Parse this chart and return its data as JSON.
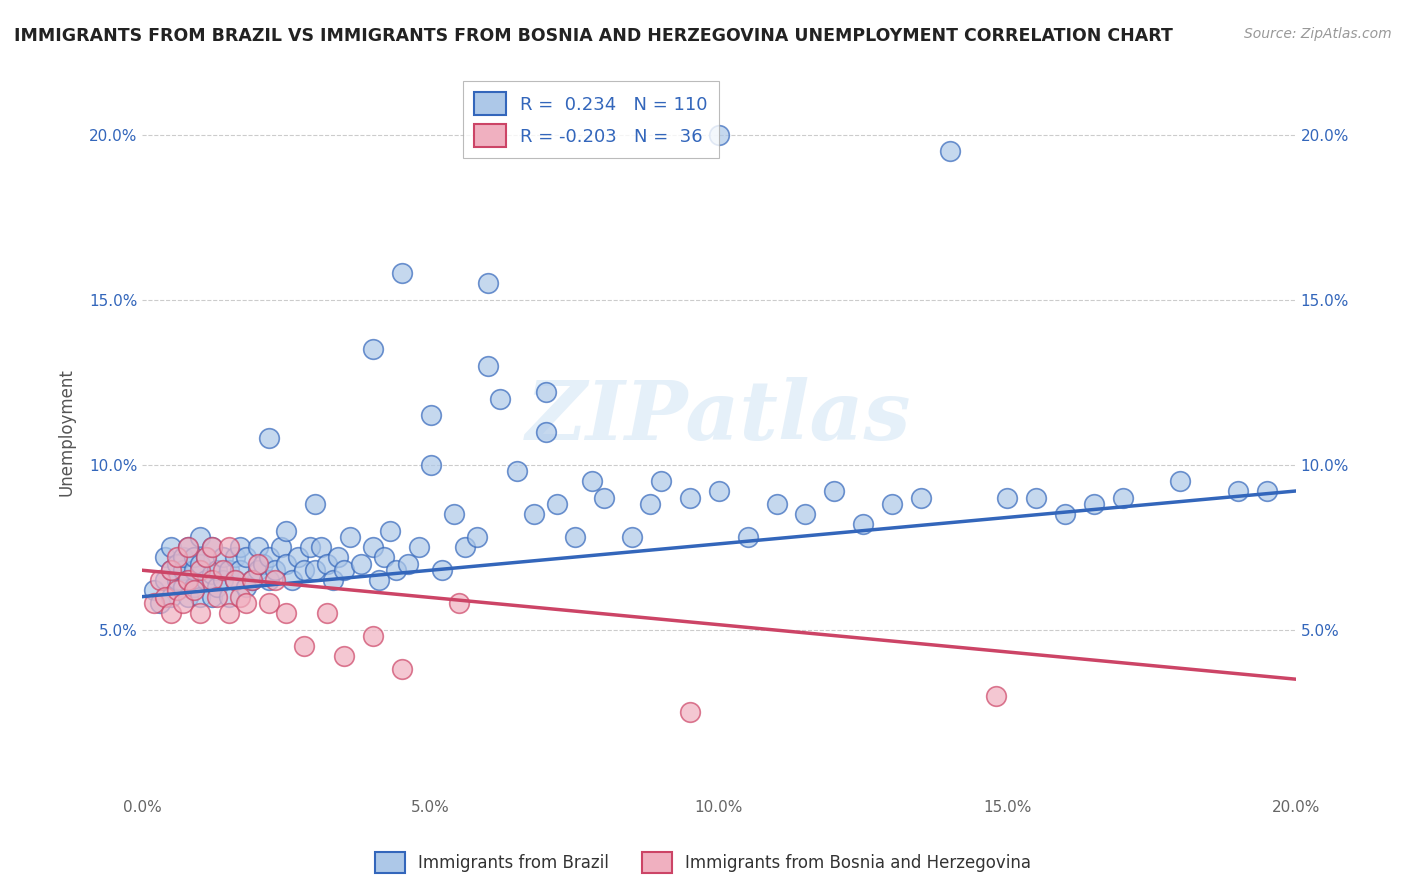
{
  "title": "IMMIGRANTS FROM BRAZIL VS IMMIGRANTS FROM BOSNIA AND HERZEGOVINA UNEMPLOYMENT CORRELATION CHART",
  "source": "Source: ZipAtlas.com",
  "ylabel": "Unemployment",
  "xlim": [
    0.0,
    0.2
  ],
  "ylim": [
    0.0,
    0.22
  ],
  "x_ticks": [
    0.0,
    0.05,
    0.1,
    0.15,
    0.2
  ],
  "x_tick_labels": [
    "0.0%",
    "5.0%",
    "10.0%",
    "15.0%",
    "20.0%"
  ],
  "y_ticks": [
    0.05,
    0.1,
    0.15,
    0.2
  ],
  "y_tick_labels": [
    "5.0%",
    "10.0%",
    "15.0%",
    "20.0%"
  ],
  "brazil_color": "#adc8e8",
  "brazil_edge_color": "#3366bb",
  "bosnia_color": "#f0b0c0",
  "bosnia_edge_color": "#cc4466",
  "brazil_R": 0.234,
  "brazil_N": 110,
  "bosnia_R": -0.203,
  "bosnia_N": 36,
  "watermark": "ZIPatlas",
  "legend_brazil": "Immigrants from Brazil",
  "legend_bosnia": "Immigrants from Bosnia and Herzegovina",
  "brazil_scatter_x": [
    0.002,
    0.003,
    0.004,
    0.004,
    0.005,
    0.005,
    0.005,
    0.006,
    0.006,
    0.007,
    0.007,
    0.007,
    0.008,
    0.008,
    0.008,
    0.009,
    0.009,
    0.009,
    0.01,
    0.01,
    0.01,
    0.011,
    0.011,
    0.012,
    0.012,
    0.012,
    0.013,
    0.013,
    0.014,
    0.014,
    0.015,
    0.015,
    0.016,
    0.016,
    0.017,
    0.017,
    0.018,
    0.018,
    0.019,
    0.02,
    0.02,
    0.021,
    0.022,
    0.022,
    0.023,
    0.024,
    0.025,
    0.026,
    0.027,
    0.028,
    0.029,
    0.03,
    0.031,
    0.032,
    0.033,
    0.034,
    0.035,
    0.036,
    0.038,
    0.04,
    0.041,
    0.042,
    0.043,
    0.044,
    0.045,
    0.046,
    0.048,
    0.05,
    0.052,
    0.054,
    0.056,
    0.058,
    0.06,
    0.062,
    0.065,
    0.068,
    0.07,
    0.072,
    0.075,
    0.078,
    0.08,
    0.085,
    0.088,
    0.09,
    0.095,
    0.1,
    0.105,
    0.11,
    0.115,
    0.12,
    0.125,
    0.13,
    0.135,
    0.14,
    0.15,
    0.155,
    0.16,
    0.165,
    0.17,
    0.18,
    0.19,
    0.195,
    0.1,
    0.06,
    0.07,
    0.04,
    0.05,
    0.03,
    0.025,
    0.022
  ],
  "brazil_scatter_y": [
    0.062,
    0.058,
    0.065,
    0.072,
    0.06,
    0.068,
    0.075,
    0.065,
    0.07,
    0.063,
    0.068,
    0.072,
    0.06,
    0.065,
    0.075,
    0.063,
    0.068,
    0.072,
    0.06,
    0.07,
    0.078,
    0.065,
    0.072,
    0.06,
    0.067,
    0.075,
    0.063,
    0.068,
    0.065,
    0.072,
    0.06,
    0.068,
    0.072,
    0.065,
    0.075,
    0.068,
    0.063,
    0.072,
    0.065,
    0.068,
    0.075,
    0.07,
    0.065,
    0.072,
    0.068,
    0.075,
    0.07,
    0.065,
    0.072,
    0.068,
    0.075,
    0.068,
    0.075,
    0.07,
    0.065,
    0.072,
    0.068,
    0.078,
    0.07,
    0.075,
    0.065,
    0.072,
    0.08,
    0.068,
    0.158,
    0.07,
    0.075,
    0.1,
    0.068,
    0.085,
    0.075,
    0.078,
    0.13,
    0.12,
    0.098,
    0.085,
    0.11,
    0.088,
    0.078,
    0.095,
    0.09,
    0.078,
    0.088,
    0.095,
    0.09,
    0.092,
    0.078,
    0.088,
    0.085,
    0.092,
    0.082,
    0.088,
    0.09,
    0.195,
    0.09,
    0.09,
    0.085,
    0.088,
    0.09,
    0.095,
    0.092,
    0.092,
    0.2,
    0.155,
    0.122,
    0.135,
    0.115,
    0.088,
    0.08,
    0.108
  ],
  "bosnia_scatter_x": [
    0.002,
    0.003,
    0.004,
    0.005,
    0.005,
    0.006,
    0.006,
    0.007,
    0.008,
    0.008,
    0.009,
    0.01,
    0.01,
    0.011,
    0.012,
    0.012,
    0.013,
    0.014,
    0.015,
    0.015,
    0.016,
    0.017,
    0.018,
    0.019,
    0.02,
    0.022,
    0.023,
    0.025,
    0.028,
    0.032,
    0.035,
    0.04,
    0.045,
    0.055,
    0.148,
    0.095
  ],
  "bosnia_scatter_y": [
    0.058,
    0.065,
    0.06,
    0.055,
    0.068,
    0.062,
    0.072,
    0.058,
    0.065,
    0.075,
    0.062,
    0.068,
    0.055,
    0.072,
    0.065,
    0.075,
    0.06,
    0.068,
    0.055,
    0.075,
    0.065,
    0.06,
    0.058,
    0.065,
    0.07,
    0.058,
    0.065,
    0.055,
    0.045,
    0.055,
    0.042,
    0.048,
    0.038,
    0.058,
    0.03,
    0.025
  ],
  "brazil_line_x": [
    0.0,
    0.2
  ],
  "brazil_line_y": [
    0.06,
    0.092
  ],
  "bosnia_line_x": [
    0.0,
    0.2
  ],
  "bosnia_line_y": [
    0.068,
    0.035
  ]
}
